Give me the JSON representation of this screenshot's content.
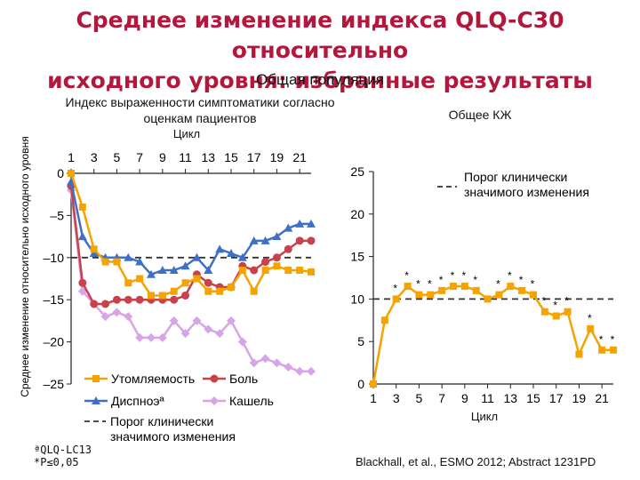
{
  "title_line1": "Среднее изменение индекса QLQ-C30 относительно",
  "title_line2": "исходного уровня: избранные результаты",
  "subtitle": "Общая популяция",
  "footnote1": "ªQLQ-LC13",
  "footnote2": "*P≤0,05",
  "source": "Blackhall, et al., ESMO 2012; Abstract 1231PD",
  "colors": {
    "title": "#b3173c",
    "fatigue": "#f4a300",
    "pain": "#c8414b",
    "dyspnea": "#3f70c8",
    "cough": "#d7a4e8",
    "qol": "#f4a300"
  },
  "chart_data": [
    {
      "type": "line",
      "title": "Индекс выраженности симптоматики согласно оценкам пациентов",
      "xlabel": "Цикл",
      "ylabel": "Среднее изменение относительно исходного уровня",
      "xlim": [
        1,
        22
      ],
      "ylim": [
        -25,
        0
      ],
      "xticks": [
        1,
        3,
        5,
        7,
        9,
        11,
        13,
        15,
        17,
        19,
        21
      ],
      "yticks": [
        0,
        -5,
        -10,
        -15,
        -20,
        -25
      ],
      "ytick_labels": [
        "0",
        "–5",
        "–10",
        "–15",
        "–20",
        "–25"
      ],
      "threshold": -10,
      "threshold_label": "Порог клинически значимого изменения",
      "x": [
        1,
        2,
        3,
        4,
        5,
        6,
        7,
        8,
        9,
        10,
        11,
        12,
        13,
        14,
        15,
        16,
        17,
        18,
        19,
        20,
        21,
        22
      ],
      "series": [
        {
          "name": "Утомляемость",
          "color": "#f4a300",
          "values": [
            0,
            -4,
            -9,
            -10.5,
            -10.5,
            -13,
            -12.5,
            -14.5,
            -14.5,
            -14,
            -13,
            -12.5,
            -14,
            -14,
            -13.5,
            -11.5,
            -14,
            -11.5,
            -11,
            -11.5,
            -11.5,
            -11.7
          ]
        },
        {
          "name": "Боль",
          "color": "#c8414b",
          "values": [
            -1.5,
            -13,
            -15.5,
            -15.5,
            -15,
            -15,
            -15,
            -15,
            -15,
            -15,
            -14.5,
            -12,
            -13,
            -13.5,
            -13.5,
            -11,
            -11.5,
            -10.5,
            -10,
            -9,
            -8,
            -8
          ]
        },
        {
          "name": "Диспноэª",
          "color": "#3f70c8",
          "values": [
            -1,
            -7.5,
            -9.5,
            -10,
            -10,
            -10,
            -10.5,
            -12,
            -11.5,
            -11.5,
            -11,
            -10,
            -11.5,
            -9,
            -9.5,
            -10,
            -8,
            -8,
            -7.5,
            -6.5,
            -6,
            -6
          ]
        },
        {
          "name": "Кашель",
          "color": "#d7a4e8",
          "values": [
            -2,
            -14,
            -15.5,
            -17,
            -16.5,
            -17,
            -19.5,
            -19.5,
            -19.5,
            -17.5,
            -19,
            -17.5,
            -18.5,
            -19,
            -17.5,
            -20,
            -22.5,
            -22,
            -22.5,
            -23,
            -23.5,
            -23.5
          ]
        }
      ],
      "legend": [
        {
          "name": "Утомляемость",
          "color": "#f4a300",
          "marker": "square"
        },
        {
          "name": "Боль",
          "color": "#c8414b",
          "marker": "circle"
        },
        {
          "name": "Диспноэª",
          "color": "#3f70c8",
          "marker": "triangle"
        },
        {
          "name": "Кашель",
          "color": "#d7a4e8",
          "marker": "diamond"
        },
        {
          "name": "Порог клинически значимого изменения",
          "color": "#333333",
          "marker": "dash"
        }
      ],
      "legend_position": "bottom"
    },
    {
      "type": "line",
      "title": "Общее КЖ",
      "xlabel": "Цикл",
      "xlim": [
        1,
        22
      ],
      "ylim": [
        0,
        25
      ],
      "xticks": [
        1,
        3,
        5,
        7,
        9,
        11,
        13,
        15,
        17,
        19,
        21
      ],
      "yticks": [
        0,
        5,
        10,
        15,
        20,
        25
      ],
      "threshold": 10,
      "threshold_label": "Порог клинически значимого изменения",
      "x": [
        1,
        2,
        3,
        4,
        5,
        6,
        7,
        8,
        9,
        10,
        11,
        12,
        13,
        14,
        15,
        16,
        17,
        18,
        19,
        20,
        21,
        22
      ],
      "series": [
        {
          "name": "Общее КЖ",
          "color": "#f4a300",
          "values": [
            0,
            7.5,
            10,
            11.5,
            10.5,
            10.5,
            11,
            11.5,
            11.5,
            11,
            10,
            10.5,
            11.5,
            11,
            10.5,
            8.5,
            8,
            8.5,
            3.5,
            6.5,
            4,
            4
          ]
        }
      ],
      "significant": [
        false,
        false,
        true,
        true,
        true,
        true,
        true,
        true,
        true,
        true,
        false,
        true,
        true,
        true,
        true,
        true,
        true,
        true,
        false,
        true,
        true,
        true
      ],
      "significance_mark": "*",
      "legend_position": "top-right"
    }
  ]
}
